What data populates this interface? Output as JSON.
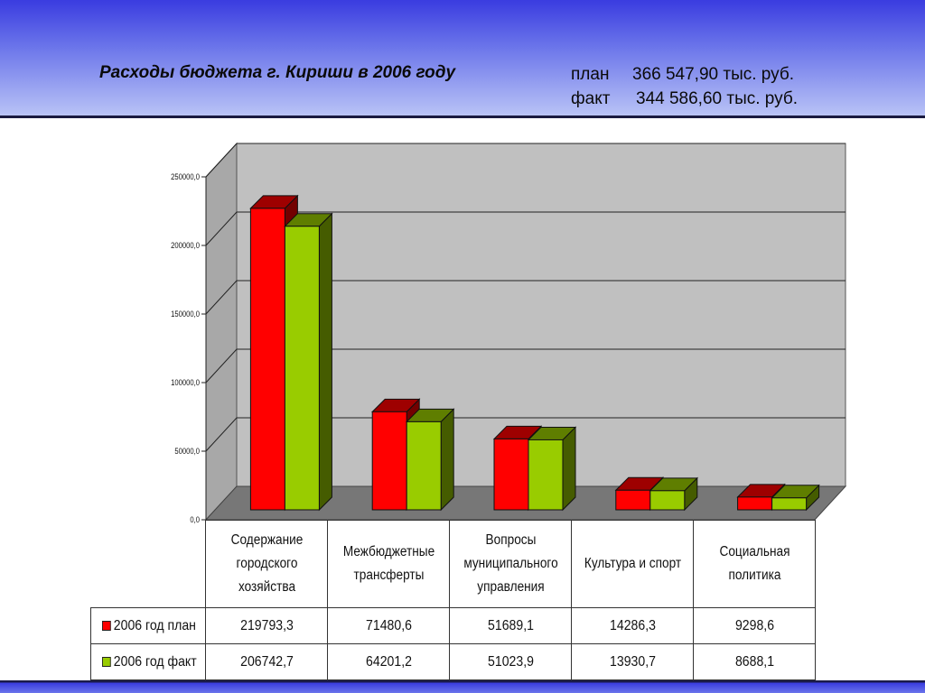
{
  "header": {
    "title": "Расходы бюджета г. Кириши в 2006 году",
    "plan_label": "план",
    "plan_value": "366 547,90 тыс. руб.",
    "fact_label": "факт",
    "fact_value": "344 586,60 тыс. руб."
  },
  "chart_data": {
    "type": "bar",
    "categories": [
      "Содержание городского хозяйства",
      "Межбюджетные трансферты",
      "Вопросы муниципального управления",
      "Культура и спорт",
      "Социальная политика"
    ],
    "series": [
      {
        "name": "2006 год план",
        "values": [
          219793.3,
          71480.6,
          51689.1,
          14286.3,
          9298.6
        ],
        "display": [
          "219793,3",
          "71480,6",
          "51689,1",
          "14286,3",
          "9298,6"
        ],
        "color": "#ff0000"
      },
      {
        "name": "2006 год факт",
        "values": [
          206742.7,
          64201.2,
          51023.9,
          13930.7,
          8688.1
        ],
        "display": [
          "206742,7",
          "64201,2",
          "51023,9",
          "13930,7",
          "8688,1"
        ],
        "color": "#99cc00"
      }
    ],
    "yticks": [
      "0,0",
      "50000,0",
      "100000,0",
      "150000,0",
      "200000,0",
      "250000,0"
    ],
    "ylim": [
      0,
      250000
    ],
    "grid": true,
    "legend": "data-table"
  }
}
